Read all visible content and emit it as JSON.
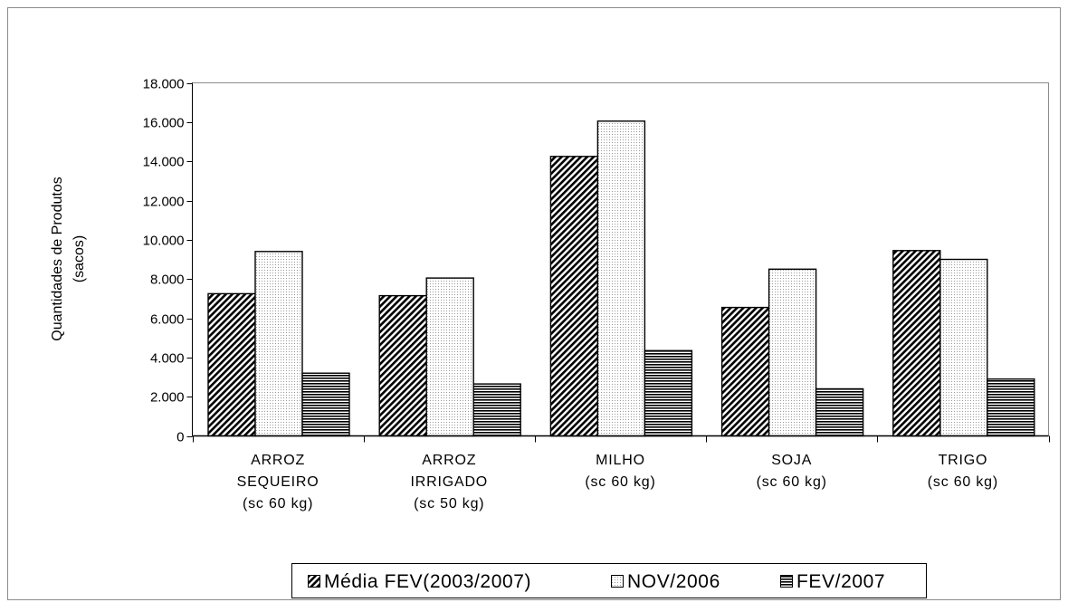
{
  "chart_data": {
    "type": "bar",
    "title": "",
    "xlabel": "",
    "ylabel": "Quantidades de Produtos",
    "ylabel_unit": "(sacos)",
    "ylim": [
      0,
      18000
    ],
    "y_ticks": [
      "0",
      "2.000",
      "4.000",
      "6.000",
      "8.000",
      "10.000",
      "12.000",
      "14.000",
      "16.000",
      "18.000"
    ],
    "y_tick_values": [
      0,
      2000,
      4000,
      6000,
      8000,
      10000,
      12000,
      14000,
      16000,
      18000
    ],
    "grid": false,
    "legend_position": "bottom",
    "categories": [
      {
        "lines": [
          "ARROZ",
          "SEQUEIRO",
          "(sc 60 kg)"
        ]
      },
      {
        "lines": [
          "ARROZ",
          "IRRIGADO",
          "(sc 50 kg)"
        ]
      },
      {
        "lines": [
          "MILHO",
          "(sc 60 kg)"
        ]
      },
      {
        "lines": [
          "SOJA",
          "(sc 60 kg)"
        ]
      },
      {
        "lines": [
          "TRIGO",
          "(sc 60 kg)"
        ]
      }
    ],
    "series": [
      {
        "name": "Média FEV(2003/2007)",
        "pattern": "diagonal-hatch",
        "values": [
          7250,
          7150,
          14250,
          6550,
          9450
        ]
      },
      {
        "name": "NOV/2006",
        "pattern": "fine-dots",
        "values": [
          9400,
          8050,
          16050,
          8500,
          9000
        ]
      },
      {
        "name": "FEV/2007",
        "pattern": "horizontal-lines",
        "values": [
          3200,
          2650,
          4350,
          2400,
          2900
        ]
      }
    ]
  }
}
